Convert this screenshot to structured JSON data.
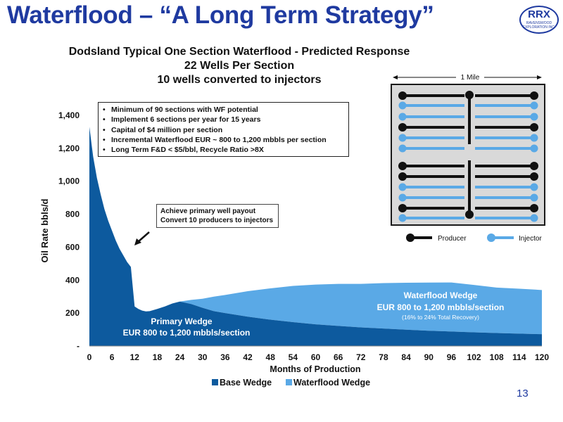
{
  "slide": {
    "title": "Waterflood – “A Long Term Strategy”",
    "page_number": "13"
  },
  "logo": {
    "mark": "RRX",
    "sub_line1": "RAVENSWOOD",
    "sub_line2": "EXPLORATION INC."
  },
  "chart_title": {
    "line1": "Dodsland Typical One Section Waterflood -  Predicted Response",
    "line2": "22 Wells Per Section",
    "line3": "10 wells converted to injectors"
  },
  "bullets": [
    "Minimum of 90 sections with WF potential",
    "Implement 6 sections per year for 15 years",
    "Capital of $4 million per section",
    "Incremental Waterflood EUR ~ 800 to 1,200 mbbls per section",
    "Long Term F&D < $5/bbl, Recycle Ratio >8X"
  ],
  "callout": {
    "line1": "Achieve primary well payout",
    "line2": "Convert 10 producers to injectors"
  },
  "annotations": {
    "primary_wedge_title": "Primary Wedge",
    "primary_wedge_eur": "EUR 800 to 1,200 mbbls/section",
    "waterflood_wedge_title": "Waterflood Wedge",
    "waterflood_wedge_eur": "EUR 800 to 1,200 mbbls/section",
    "waterflood_wedge_recovery": "(16% to 24% Total Recovery)"
  },
  "diagram": {
    "scale_label": "1 Mile",
    "legend_producer": "Producer",
    "legend_injector": "Injector",
    "producer_color": "#111111",
    "injector_color": "#5aa9e6",
    "background_color": "#d9d9d9",
    "rows": [
      "producer",
      "injector",
      "injector",
      "producer",
      "injector",
      "injector",
      "producer",
      "producer",
      "injector",
      "injector",
      "producer",
      "injector"
    ]
  },
  "colors": {
    "title_blue": "#1f3aa0",
    "base_wedge": "#0d5a9e",
    "waterflood_wedge": "#5aa9e6"
  },
  "chart_data": {
    "type": "area",
    "stacked": true,
    "xlabel": "Months of Production",
    "ylabel": "Oil Rate bbls/d",
    "xlim": [
      0,
      120
    ],
    "ylim": [
      0,
      1400
    ],
    "x_ticks": [
      0,
      6,
      12,
      18,
      24,
      30,
      36,
      42,
      48,
      54,
      60,
      66,
      72,
      78,
      84,
      90,
      96,
      102,
      108,
      114,
      120
    ],
    "y_ticks": [
      0,
      200,
      400,
      600,
      800,
      1000,
      1200,
      1400
    ],
    "y_tick_labels": [
      "-",
      "200",
      "400",
      "600",
      "800",
      "1,000",
      "1,200",
      "1,400"
    ],
    "legend_position": "bottom",
    "series": [
      {
        "name": "Base Wedge",
        "color": "#0d5a9e",
        "x": [
          0,
          1,
          2,
          3,
          4,
          5,
          6,
          7,
          8,
          9,
          10,
          11,
          12,
          13,
          14,
          15,
          16,
          18,
          20,
          22,
          24,
          27,
          30,
          33,
          36,
          42,
          48,
          54,
          60,
          66,
          72,
          78,
          84,
          90,
          96,
          102,
          108,
          114,
          120
        ],
        "values": [
          1330,
          1150,
          1020,
          920,
          830,
          760,
          700,
          640,
          590,
          550,
          510,
          480,
          240,
          225,
          215,
          210,
          212,
          225,
          240,
          258,
          270,
          255,
          232,
          212,
          200,
          178,
          160,
          145,
          132,
          122,
          113,
          106,
          99,
          93,
          88,
          83,
          79,
          75,
          72
        ]
      },
      {
        "name": "Waterflood Wedge",
        "color": "#5aa9e6",
        "x": [
          0,
          1,
          2,
          3,
          4,
          5,
          6,
          7,
          8,
          9,
          10,
          11,
          12,
          13,
          14,
          15,
          16,
          18,
          20,
          22,
          24,
          27,
          30,
          33,
          36,
          42,
          48,
          54,
          60,
          66,
          72,
          78,
          84,
          90,
          96,
          102,
          108,
          114,
          120
        ],
        "values": [
          0,
          0,
          0,
          0,
          0,
          0,
          0,
          0,
          0,
          0,
          0,
          0,
          0,
          0,
          0,
          0,
          0,
          0,
          0,
          0,
          0,
          25,
          55,
          88,
          110,
          155,
          190,
          220,
          241,
          255,
          264,
          276,
          285,
          292,
          298,
          288,
          276,
          273,
          268
        ]
      }
    ]
  }
}
